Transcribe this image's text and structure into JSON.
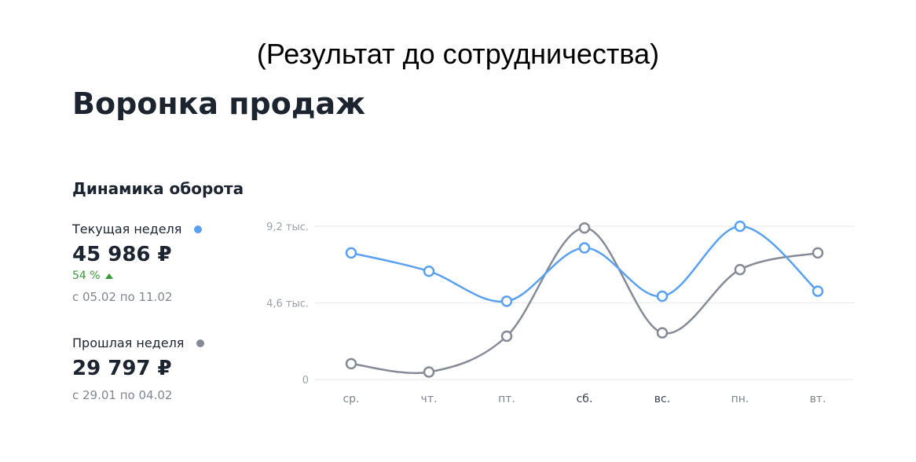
{
  "caption": "(Результат до сотрудничества)",
  "page_title": "Воронка продаж",
  "section_title": "Динамика оборота",
  "current_week": {
    "label": "Текущая неделя",
    "value": "45 986 ₽",
    "change": "54 %",
    "range": "с 05.02 по 11.02"
  },
  "previous_week": {
    "label": "Прошлая неделя",
    "value": "29 797 ₽",
    "range": "с 29.01 по 04.02"
  },
  "colors": {
    "current": "#5aa0f0",
    "previous": "#858b96",
    "positive": "#3a9a3a",
    "grid": "#e4e7ea"
  },
  "chart_data": {
    "type": "line",
    "categories": [
      "ср.",
      "чт.",
      "пт.",
      "сб.",
      "вс.",
      "пн.",
      "вт."
    ],
    "highlighted_categories": [
      "сб.",
      "вс."
    ],
    "y_ticks": [
      {
        "value": 0,
        "label": "0"
      },
      {
        "value": 4600,
        "label": "4,6 тыс."
      },
      {
        "value": 9200,
        "label": "9,2 тыс."
      }
    ],
    "ylim": [
      0,
      9200
    ],
    "grid": true,
    "series": [
      {
        "key": "current",
        "values": [
          7600,
          6500,
          4700,
          7900,
          5000,
          9200,
          5300
        ]
      },
      {
        "key": "previous",
        "values": [
          950,
          450,
          2600,
          9100,
          2800,
          6600,
          7600
        ]
      }
    ]
  }
}
